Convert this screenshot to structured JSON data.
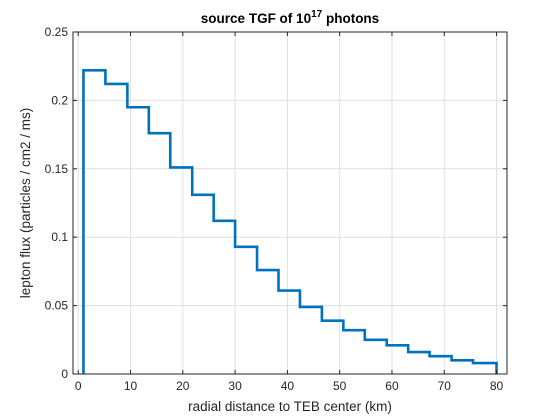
{
  "chart_data": {
    "type": "line",
    "style": "stairs",
    "title": {
      "prefix": "source TGF of 10",
      "superscript": "17",
      "suffix": " photons"
    },
    "xlabel": "radial distance to TEB center (km)",
    "ylabel": "lepton flux (particles / cm2 / ms)",
    "xlim": [
      -1,
      82
    ],
    "ylim": [
      0,
      0.25
    ],
    "xticks": [
      0,
      10,
      20,
      30,
      40,
      50,
      60,
      70,
      80
    ],
    "yticks": [
      0,
      0.05,
      0.1,
      0.15,
      0.2,
      0.25
    ],
    "xtick_labels": [
      "0",
      "10",
      "20",
      "30",
      "40",
      "50",
      "60",
      "70",
      "80"
    ],
    "ytick_labels": [
      "0",
      "0.05",
      "0.1",
      "0.15",
      "0.2",
      "0.25"
    ],
    "grid": true,
    "series": [
      {
        "color": "#0072BD",
        "edges": [
          1,
          5.2,
          9.4,
          13.5,
          17.6,
          21.8,
          25.9,
          30.0,
          34.2,
          38.3,
          42.4,
          46.6,
          50.7,
          54.8,
          59.0,
          63.1,
          67.2,
          71.4,
          75.5,
          80
        ],
        "values": [
          0.222,
          0.212,
          0.195,
          0.176,
          0.151,
          0.131,
          0.112,
          0.093,
          0.076,
          0.061,
          0.049,
          0.039,
          0.032,
          0.025,
          0.021,
          0.016,
          0.013,
          0.01,
          0.008
        ]
      }
    ]
  }
}
